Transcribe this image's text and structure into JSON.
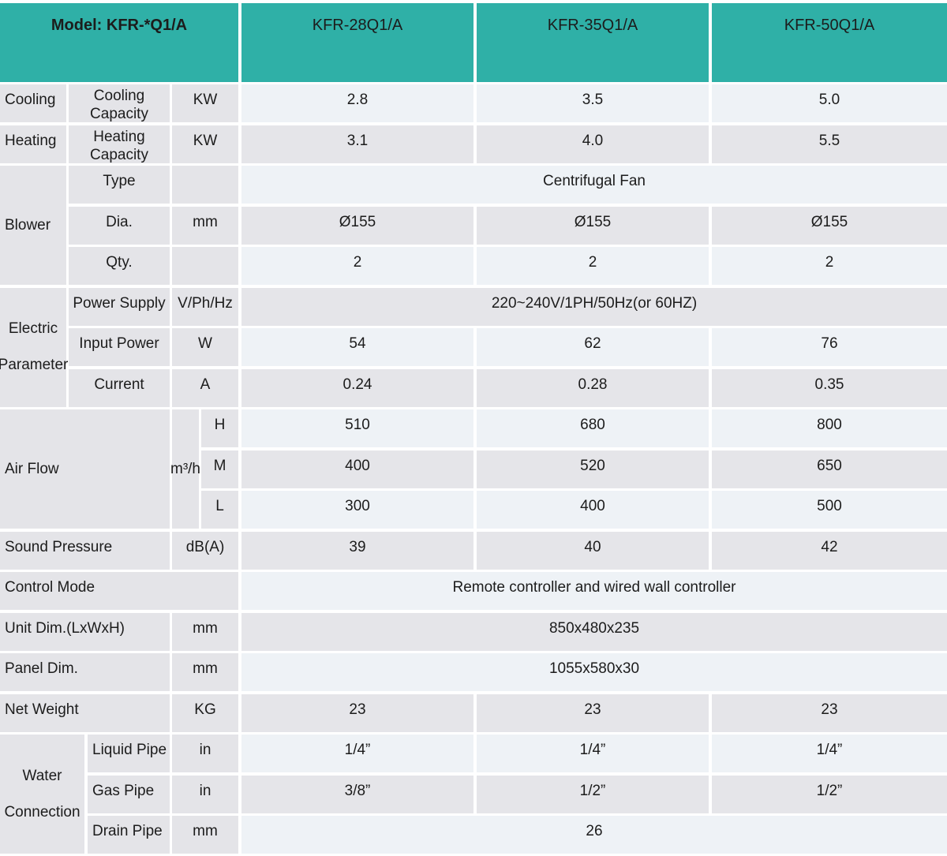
{
  "colors": {
    "header_teal": "#2fb0a7",
    "row_light": "#eef2f6",
    "row_gray": "#e5e5e9",
    "label_gray": "#e4e4e8",
    "text_dark": "#1c1c1c"
  },
  "header": {
    "model_label": "Model: KFR-*Q1/A",
    "columns": [
      "KFR-28Q1/A",
      "KFR-35Q1/A",
      "KFR-50Q1/A"
    ]
  },
  "rows": {
    "cooling": {
      "group": "Cooling",
      "label": "Cooling Capacity",
      "unit": "KW",
      "values": [
        "2.8",
        "3.5",
        "5.0"
      ]
    },
    "heating": {
      "group": "Heating",
      "label": "Heating Capacity",
      "unit": "KW",
      "values": [
        "3.1",
        "4.0",
        "5.5"
      ]
    },
    "blower": {
      "group": "Blower",
      "type": {
        "label": "Type",
        "unit": "",
        "merged": "Centrifugal Fan"
      },
      "dia": {
        "label": "Dia.",
        "unit": "mm",
        "values": [
          "Ø155",
          "Ø155",
          "Ø155"
        ]
      },
      "qty": {
        "label": "Qty.",
        "unit": "",
        "values": [
          "2",
          "2",
          "2"
        ]
      }
    },
    "electric": {
      "group": "Electric Parameter",
      "power_supply": {
        "label": "Power Supply",
        "unit": "V/Ph/Hz",
        "merged": "220~240V/1PH/50Hz(or 60HZ)"
      },
      "input_power": {
        "label": "Input Power",
        "unit": "W",
        "values": [
          "54",
          "62",
          "76"
        ]
      },
      "current": {
        "label": "Current",
        "unit": "A",
        "values": [
          "0.24",
          "0.28",
          "0.35"
        ]
      }
    },
    "air_flow": {
      "group": "Air Flow",
      "unit": "m³/h",
      "h": {
        "label": "H",
        "values": [
          "510",
          "680",
          "800"
        ]
      },
      "m": {
        "label": "M",
        "values": [
          "400",
          "520",
          "650"
        ]
      },
      "l": {
        "label": "L",
        "values": [
          "300",
          "400",
          "500"
        ]
      }
    },
    "sound_pressure": {
      "label": "Sound Pressure",
      "unit": "dB(A)",
      "values": [
        "39",
        "40",
        "42"
      ]
    },
    "control_mode": {
      "label": "Control Mode",
      "merged": "Remote controller and wired wall controller"
    },
    "unit_dim": {
      "label": "Unit Dim.(LxWxH)",
      "unit": "mm",
      "merged": "850x480x235"
    },
    "panel_dim": {
      "label": "Panel Dim.",
      "unit": "mm",
      "merged": "1055x580x30"
    },
    "net_weight": {
      "label": "Net Weight",
      "unit": "KG",
      "values": [
        "23",
        "23",
        "23"
      ]
    },
    "water": {
      "group": "Water Connection",
      "liquid": {
        "label": "Liquid Pipe",
        "unit": "in",
        "values": [
          "1/4”",
          "1/4”",
          "1/4”"
        ]
      },
      "gas": {
        "label": "Gas Pipe",
        "unit": "in",
        "values": [
          "3/8”",
          "1/2”",
          "1/2”"
        ]
      },
      "drain": {
        "label": "Drain Pipe",
        "unit": "mm",
        "merged": "26"
      }
    }
  }
}
